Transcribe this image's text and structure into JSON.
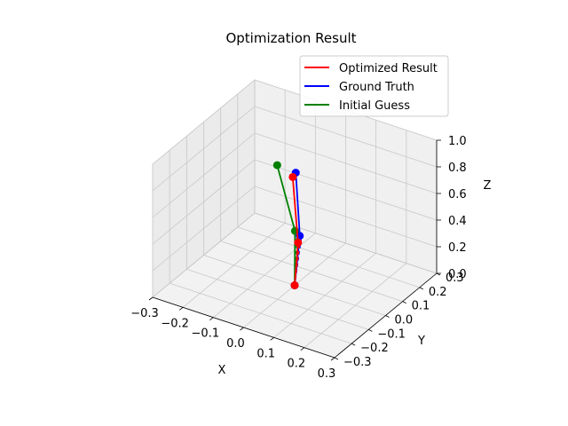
{
  "chart_data": {
    "type": "line",
    "projection": "3d",
    "title": "Optimization Result",
    "xlabel": "X",
    "ylabel": "Y",
    "zlabel": "Z",
    "xlim": [
      -0.3,
      0.3
    ],
    "ylim": [
      -0.3,
      0.3
    ],
    "zlim": [
      0,
      1.0
    ],
    "xticks": [
      "−0.3",
      "−0.2",
      "−0.1",
      "0.0",
      "0.1",
      "0.2",
      "0.3"
    ],
    "yticks": [
      "−0.3",
      "−0.2",
      "−0.1",
      "0.0",
      "0.1",
      "0.2",
      "0.3"
    ],
    "zticks": [
      "0.0",
      "0.2",
      "0.4",
      "0.6",
      "0.8",
      "1.0"
    ],
    "grid": true,
    "legend_position": "top-right",
    "series": [
      {
        "name": "Optimized Result",
        "color": "#ff0000",
        "points": [
          [
            0.0,
            0.0,
            0.0
          ],
          [
            0.0,
            0.02,
            0.3
          ],
          [
            -0.04,
            0.06,
            0.72
          ]
        ]
      },
      {
        "name": "Ground Truth",
        "color": "#0000ff",
        "points": [
          [
            0.0,
            0.0,
            0.0
          ],
          [
            0.0,
            0.03,
            0.34
          ],
          [
            -0.03,
            0.06,
            0.76
          ]
        ]
      },
      {
        "name": "Initial Guess",
        "color": "#008000",
        "points": [
          [
            0.0,
            0.0,
            0.0
          ],
          [
            -0.01,
            0.02,
            0.38
          ],
          [
            -0.08,
            0.04,
            0.8
          ]
        ]
      }
    ]
  }
}
